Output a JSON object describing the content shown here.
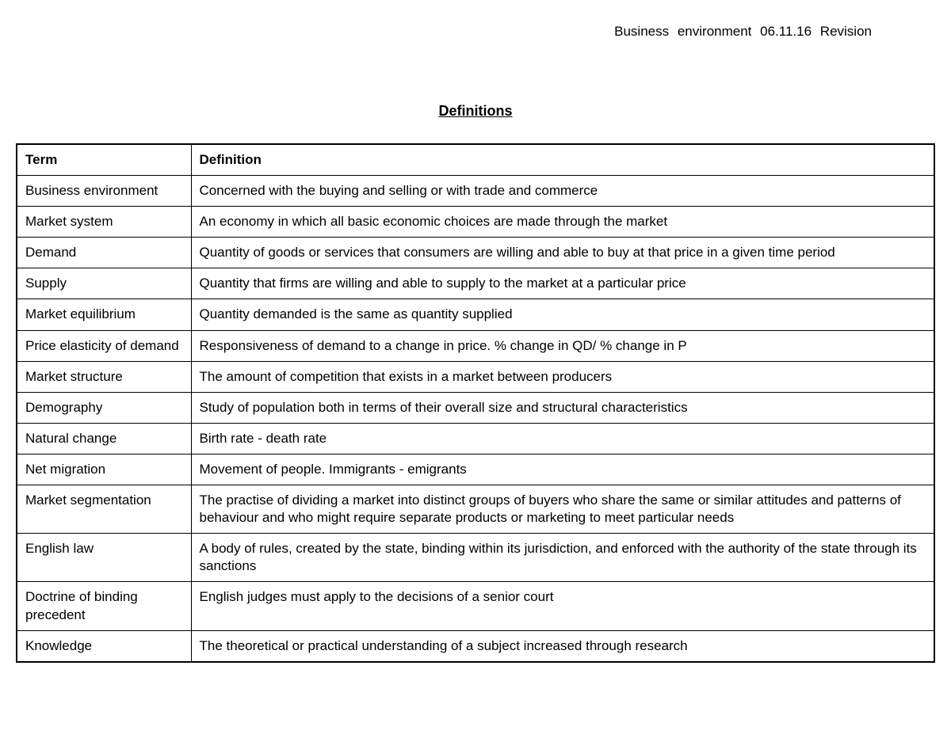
{
  "header": {
    "subject": "Business environment",
    "date": "06.11.16",
    "label": "Revision"
  },
  "title": "Definitions",
  "table": {
    "columns": [
      "Term",
      "Definition"
    ],
    "rows": [
      {
        "term": "Business environment",
        "definition": "Concerned with the buying and selling or with trade and commerce"
      },
      {
        "term": "Market system",
        "definition": "An economy in which all basic economic choices are made through the market"
      },
      {
        "term": "Demand",
        "definition": "Quantity of goods or services that consumers are willing and able to buy at that price in a given time period"
      },
      {
        "term": "Supply",
        "definition": "Quantity that firms are willing and able to supply to the market at a particular price"
      },
      {
        "term": "Market equilibrium",
        "definition": "Quantity demanded is the same as quantity supplied"
      },
      {
        "term": "Price elasticity of demand",
        "definition": "Responsiveness of demand to a change in price. % change in QD/ % change in P"
      },
      {
        "term": "Market structure",
        "definition": "The amount of competition that exists in a market between producers"
      },
      {
        "term": "Demography",
        "definition": "Study of population both in terms of their overall size and structural characteristics"
      },
      {
        "term": "Natural change",
        "definition": "Birth rate - death rate"
      },
      {
        "term": "Net migration",
        "definition": "Movement of people. Immigrants - emigrants"
      },
      {
        "term": "Market segmentation",
        "definition": "The practise of dividing a market into distinct groups of buyers who share the same or similar attitudes and patterns of behaviour and who might require separate products or marketing to meet particular needs"
      },
      {
        "term": "English law",
        "definition": "A body of rules, created by the state, binding within its jurisdiction, and enforced with the authority of the state through its sanctions"
      },
      {
        "term": "Doctrine of binding precedent",
        "definition": "English judges must apply to the decisions of a senior court"
      },
      {
        "term": "Knowledge",
        "definition": "The theoretical or practical understanding of a subject increased through research"
      }
    ]
  },
  "styling": {
    "background_color": "#ffffff",
    "text_color": "#000000",
    "border_color": "#000000",
    "font_family": "Arial",
    "body_font_size": 17,
    "title_font_size": 18,
    "term_column_width": 220
  }
}
